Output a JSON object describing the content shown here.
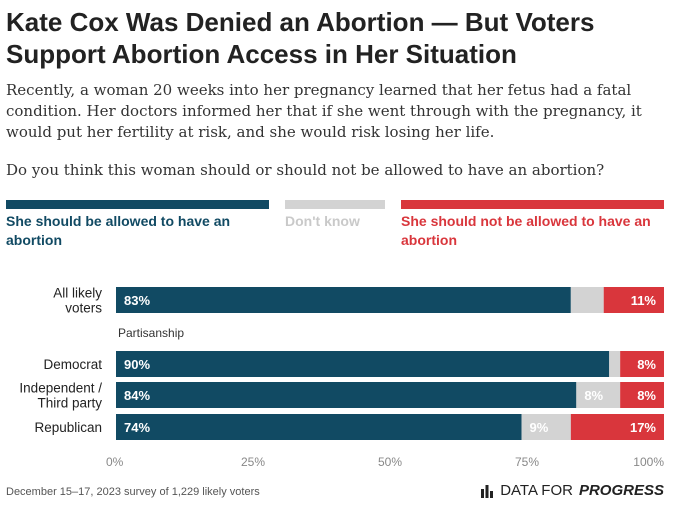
{
  "title": "Kate Cox Was Denied an Abortion — But Voters Support Abortion Access in Her Situation",
  "subtitle": "Recently, a woman 20 weeks into her pregnancy learned that her fetus had a fatal condition. Her doctors informed her that if she went through with the pregnancy, it would put her fertility at risk, and she would risk losing her life.",
  "question": "Do you think this woman should or should not be allowed to have an abortion?",
  "footer": "December 15–17, 2023 survey of 1,229 likely voters",
  "brand": {
    "prefix": "DATA FOR",
    "name": "PROGRESS"
  },
  "colors": {
    "allowed": "#114a63",
    "dont_know": "#d3d3d3",
    "not_allowed": "#d9363c"
  },
  "legend": {
    "allowed": "She should be allowed to have an abortion",
    "dont_know": "Don't know",
    "not_allowed": "She should not be allowed to have an abortion"
  },
  "chart_data": {
    "type": "bar",
    "orientation": "horizontal",
    "stacked": true,
    "xlim": [
      0,
      100
    ],
    "x_ticks": [
      "0%",
      "25%",
      "50%",
      "75%",
      "100%"
    ],
    "group_label": "Partisanship",
    "categories": [
      "All likely voters",
      "Democrat",
      "Independent / Third party",
      "Republican"
    ],
    "series": [
      {
        "name": "She should be allowed to have an abortion",
        "values": [
          83,
          90,
          84,
          74
        ],
        "labels": [
          "83%",
          "90%",
          "84%",
          "74%"
        ]
      },
      {
        "name": "Don't know",
        "values": [
          6,
          2,
          8,
          9
        ],
        "labels": [
          "",
          "",
          "8%",
          "9%"
        ]
      },
      {
        "name": "She should not be allowed to have an abortion",
        "values": [
          11,
          8,
          8,
          17
        ],
        "labels": [
          "11%",
          "8%",
          "8%",
          "17%"
        ]
      }
    ]
  }
}
